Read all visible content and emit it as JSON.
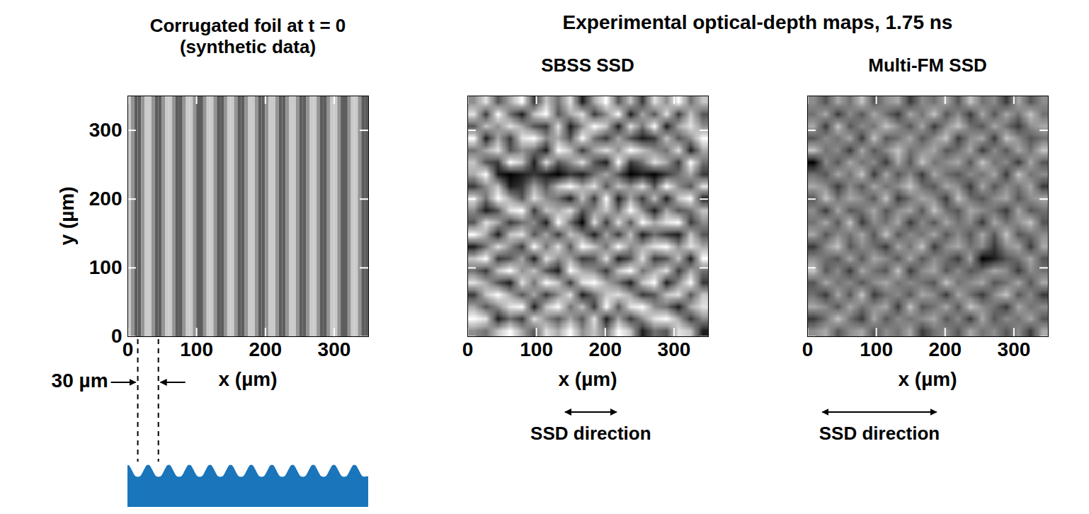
{
  "figure_title": "Experimental optical-depth maps, 1.75 ns",
  "chart_data": [
    {
      "type": "stripe_map",
      "title": "Corrugated foil at t = 0 (synthetic data)",
      "xlabel": "x (µm)",
      "ylabel": "y (µm)",
      "xlim": [
        0,
        350
      ],
      "ylim": [
        0,
        350
      ],
      "xticks": [
        0,
        100,
        200,
        300
      ],
      "yticks": [
        0,
        100,
        200,
        300
      ],
      "color_domain": [
        -1,
        1
      ],
      "profile": {
        "x": [
          2.5,
          7.5,
          12.5,
          17.5,
          22.5,
          27.5,
          32.5,
          37.5,
          42.5,
          47.5,
          52.5,
          57.5,
          62.5,
          67.5,
          72.5,
          77.5,
          82.5,
          87.5,
          92.5,
          97.5,
          102.5,
          107.5,
          112.5,
          117.5,
          122.5,
          127.5,
          132.5,
          137.5,
          142.5,
          147.5,
          152.5,
          157.5,
          162.5,
          167.5,
          172.5,
          177.5,
          182.5,
          187.5,
          192.5,
          197.5,
          202.5,
          207.5,
          212.5,
          217.5,
          222.5,
          227.5,
          232.5,
          237.5,
          242.5,
          247.5,
          252.5,
          257.5,
          262.5,
          267.5,
          272.5,
          277.5,
          282.5,
          287.5,
          292.5,
          297.5,
          302.5,
          307.5,
          312.5,
          317.5,
          322.5,
          327.5,
          332.5,
          337.5,
          342.5,
          347.5
        ],
        "values": [
          0.87,
          0,
          -0.87,
          -0.87,
          0,
          0.87,
          0.87,
          0,
          -0.87,
          -0.87,
          0,
          0.87,
          0.87,
          0,
          -0.87,
          -0.87,
          0,
          0.87,
          0.87,
          0,
          -0.87,
          -0.87,
          0,
          0.87,
          0.87,
          0,
          -0.87,
          -0.87,
          0,
          0.87,
          0.87,
          0,
          -0.87,
          -0.87,
          0,
          0.87,
          0.87,
          0,
          -0.87,
          -0.87,
          0,
          0.87,
          0.87,
          0,
          -0.87,
          -0.87,
          0,
          0.87,
          0.87,
          0,
          -0.87,
          -0.87,
          0,
          0.87,
          0.87,
          0,
          -0.87,
          -0.87,
          0,
          0.87,
          0.87,
          0,
          -0.87,
          -0.87,
          0,
          0.87,
          0.87,
          0,
          -0.87,
          -0.87
        ]
      },
      "annotation": {
        "text": "30 µm",
        "span": [
          15,
          45
        ]
      }
    },
    {
      "type": "heatmap",
      "title": "SBSS SSD",
      "xlabel": "x (µm)",
      "tick_labels": "x",
      "xlim": [
        0,
        350
      ],
      "ylim": [
        0,
        350
      ],
      "xticks": [
        0,
        100,
        200,
        300
      ],
      "yticks": [
        0,
        100,
        200,
        300
      ],
      "color_domain": [
        0,
        9
      ],
      "cells": [
        [
          5,
          8,
          3,
          6,
          9,
          2,
          7,
          4,
          8,
          1,
          6,
          9,
          3,
          7,
          2,
          8,
          5,
          9,
          4,
          7
        ],
        [
          8,
          2,
          9,
          4,
          1,
          7,
          9,
          3,
          6,
          8,
          2,
          5,
          9,
          1,
          6,
          3,
          8,
          2,
          7,
          3
        ],
        [
          3,
          7,
          5,
          8,
          6,
          3,
          2,
          8,
          1,
          5,
          9,
          7,
          1,
          8,
          4,
          9,
          1,
          6,
          8,
          5
        ],
        [
          9,
          1,
          6,
          2,
          8,
          9,
          5,
          6,
          3,
          9,
          4,
          2,
          6,
          3,
          1,
          2,
          7,
          3,
          5,
          9
        ],
        [
          4,
          6,
          8,
          3,
          5,
          4,
          1,
          9,
          7,
          2,
          6,
          8,
          5,
          9,
          7,
          5,
          4,
          8,
          1,
          6
        ],
        [
          7,
          3,
          2,
          9,
          7,
          1,
          8,
          3,
          5,
          8,
          3,
          1,
          9,
          2,
          4,
          8,
          6,
          2,
          9,
          4
        ],
        [
          6,
          9,
          1,
          0,
          1,
          2,
          1,
          0,
          2,
          1,
          4,
          6,
          3,
          0,
          1,
          0,
          2,
          4,
          6,
          2
        ],
        [
          2,
          5,
          7,
          1,
          2,
          6,
          3,
          7,
          9,
          6,
          8,
          3,
          7,
          5,
          8,
          3,
          9,
          5,
          3,
          8
        ],
        [
          8,
          4,
          9,
          6,
          3,
          8,
          5,
          4,
          1,
          7,
          2,
          9,
          1,
          6,
          2,
          7,
          1,
          7,
          9,
          1
        ],
        [
          5,
          1,
          3,
          8,
          9,
          2,
          7,
          6,
          8,
          3,
          5,
          7,
          4,
          9,
          5,
          1,
          6,
          3,
          4,
          7
        ],
        [
          3,
          8,
          6,
          2,
          4,
          5,
          1,
          9,
          4,
          0,
          8,
          2,
          8,
          3,
          9,
          6,
          8,
          9,
          2,
          5
        ],
        [
          9,
          6,
          1,
          7,
          8,
          3,
          6,
          2,
          7,
          5,
          1,
          6,
          2,
          7,
          1,
          4,
          2,
          1,
          7,
          3
        ],
        [
          1,
          4,
          8,
          5,
          2,
          9,
          4,
          8,
          3,
          9,
          7,
          4,
          9,
          5,
          6,
          8,
          9,
          5,
          8,
          6
        ],
        [
          7,
          9,
          2,
          3,
          6,
          1,
          8,
          5,
          6,
          2,
          3,
          8,
          1,
          3,
          8,
          2,
          3,
          7,
          1,
          9
        ],
        [
          4,
          2,
          7,
          9,
          5,
          7,
          3,
          1,
          9,
          6,
          5,
          2,
          7,
          9,
          4,
          6,
          8,
          2,
          6,
          4
        ],
        [
          8,
          6,
          3,
          1,
          8,
          4,
          9,
          7,
          2,
          8,
          9,
          6,
          4,
          1,
          7,
          9,
          1,
          5,
          9,
          2
        ],
        [
          2,
          7,
          9,
          6,
          3,
          6,
          2,
          5,
          8,
          1,
          4,
          7,
          8,
          6,
          2,
          3,
          7,
          8,
          3,
          7
        ],
        [
          6,
          3,
          5,
          8,
          9,
          1,
          7,
          9,
          4,
          7,
          2,
          9,
          3,
          8,
          9,
          5,
          4,
          1,
          6,
          8
        ],
        [
          9,
          8,
          1,
          4,
          2,
          8,
          5,
          3,
          6,
          3,
          8,
          1,
          6,
          2,
          5,
          8,
          9,
          6,
          2,
          5
        ],
        [
          5,
          4,
          7,
          9,
          6,
          3,
          8,
          6,
          9,
          5,
          7,
          4,
          9,
          7,
          1,
          4,
          3,
          8,
          7,
          1
        ]
      ],
      "annotation": {
        "text": "SSD direction",
        "span": [
          142,
          217
        ]
      }
    },
    {
      "type": "heatmap",
      "title": "Multi-FM SSD",
      "xlabel": "x (µm)",
      "tick_labels": "x",
      "xlim": [
        0,
        350
      ],
      "ylim": [
        0,
        350
      ],
      "xticks": [
        0,
        100,
        200,
        300
      ],
      "yticks": [
        0,
        100,
        200,
        300
      ],
      "color_domain": [
        0,
        9
      ],
      "cells": [
        [
          5,
          3,
          6,
          4,
          7,
          3,
          5,
          6,
          2,
          5,
          4,
          6,
          3,
          7,
          4,
          5,
          2,
          6,
          3,
          5
        ],
        [
          4,
          6,
          2,
          5,
          3,
          6,
          4,
          2,
          6,
          4,
          7,
          3,
          5,
          2,
          6,
          3,
          6,
          4,
          7,
          4
        ],
        [
          6,
          2,
          7,
          3,
          5,
          4,
          7,
          5,
          3,
          6,
          2,
          5,
          7,
          4,
          3,
          6,
          4,
          2,
          5,
          6
        ],
        [
          3,
          5,
          4,
          6,
          2,
          7,
          3,
          4,
          6,
          3,
          5,
          7,
          2,
          5,
          6,
          2,
          7,
          5,
          3,
          4
        ],
        [
          7,
          4,
          5,
          2,
          6,
          3,
          5,
          7,
          4,
          5,
          6,
          3,
          4,
          6,
          2,
          5,
          3,
          6,
          4,
          7
        ],
        [
          0,
          5,
          3,
          6,
          4,
          5,
          2,
          6,
          3,
          7,
          4,
          5,
          6,
          3,
          7,
          4,
          5,
          2,
          6,
          3
        ],
        [
          4,
          3,
          6,
          4,
          7,
          2,
          6,
          3,
          5,
          2,
          6,
          4,
          3,
          5,
          4,
          6,
          2,
          7,
          4,
          5
        ],
        [
          6,
          5,
          2,
          5,
          3,
          6,
          4,
          5,
          7,
          4,
          3,
          6,
          5,
          2,
          6,
          3,
          5,
          4,
          6,
          2
        ],
        [
          3,
          7,
          4,
          6,
          5,
          3,
          7,
          2,
          4,
          6,
          5,
          2,
          7,
          4,
          3,
          5,
          6,
          3,
          5,
          6
        ],
        [
          5,
          2,
          6,
          3,
          4,
          6,
          3,
          5,
          6,
          3,
          7,
          4,
          3,
          6,
          5,
          4,
          2,
          6,
          3,
          4
        ],
        [
          4,
          6,
          3,
          7,
          2,
          5,
          4,
          6,
          2,
          5,
          3,
          6,
          4,
          5,
          2,
          6,
          4,
          5,
          7,
          3
        ],
        [
          6,
          3,
          5,
          4,
          6,
          3,
          7,
          3,
          5,
          4,
          6,
          3,
          5,
          3,
          6,
          3,
          7,
          3,
          4,
          5
        ],
        [
          2,
          5,
          7,
          3,
          5,
          4,
          2,
          6,
          4,
          7,
          2,
          5,
          6,
          4,
          5,
          2,
          5,
          6,
          2,
          6
        ],
        [
          5,
          4,
          3,
          6,
          3,
          6,
          5,
          3,
          6,
          3,
          5,
          4,
          2,
          6,
          0,
          1,
          3,
          4,
          6,
          3
        ],
        [
          7,
          3,
          5,
          2,
          6,
          4,
          3,
          7,
          2,
          5,
          6,
          3,
          5,
          3,
          4,
          6,
          5,
          2,
          5,
          4
        ],
        [
          3,
          6,
          4,
          5,
          3,
          5,
          6,
          4,
          5,
          4,
          3,
          7,
          4,
          5,
          6,
          3,
          4,
          6,
          3,
          6
        ],
        [
          4,
          2,
          6,
          3,
          7,
          2,
          4,
          5,
          3,
          6,
          5,
          2,
          6,
          4,
          2,
          5,
          7,
          3,
          5,
          2
        ],
        [
          6,
          5,
          3,
          6,
          4,
          5,
          6,
          2,
          7,
          3,
          4,
          6,
          3,
          7,
          5,
          4,
          2,
          6,
          4,
          5
        ],
        [
          2,
          4,
          7,
          4,
          2,
          6,
          3,
          5,
          4,
          5,
          6,
          3,
          5,
          2,
          6,
          3,
          5,
          4,
          6,
          3
        ],
        [
          5,
          6,
          3,
          5,
          6,
          3,
          5,
          4,
          6,
          2,
          4,
          5,
          3,
          6,
          4,
          5,
          3,
          5,
          2,
          6
        ]
      ],
      "annotation": {
        "text": "SSD direction",
        "span": [
          22,
          188
        ]
      }
    }
  ]
}
